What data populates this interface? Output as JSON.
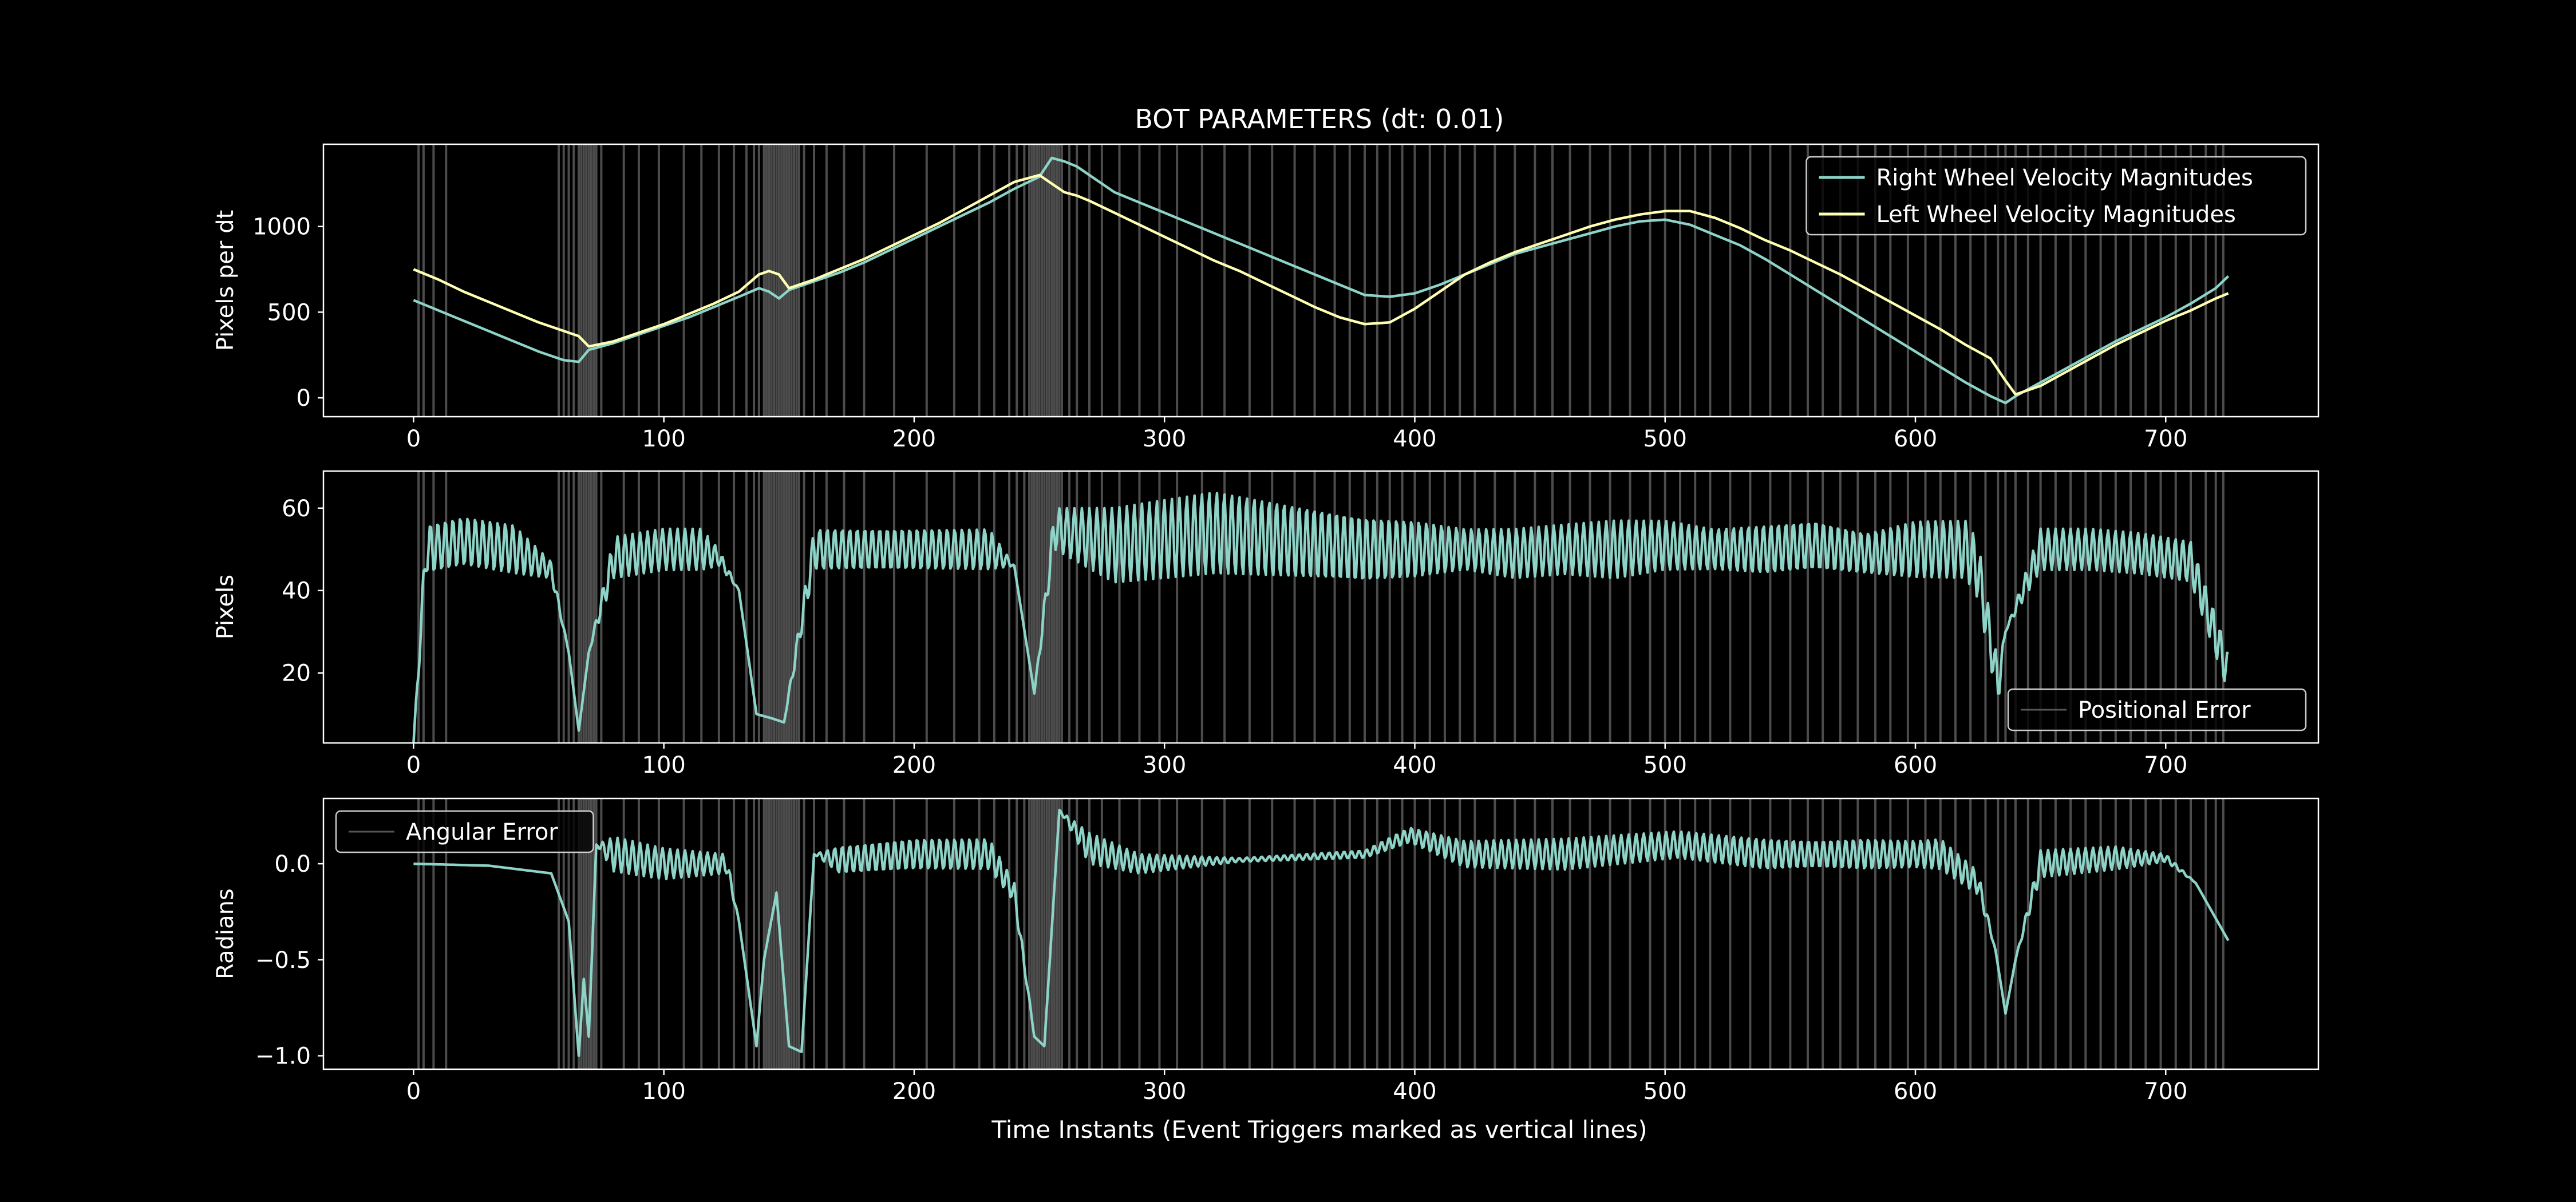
{
  "figure": {
    "title": "BOT PARAMETERS (dt: 0.01)",
    "xlabel": "Time Instants (Event Triggers marked as vertical lines)",
    "background": "#000000",
    "foreground": "#ffffff"
  },
  "chart_data": [
    {
      "type": "line",
      "title": "BOT PARAMETERS (dt: 0.01)",
      "xlabel": "",
      "ylabel": "Pixels per dt",
      "xlim": [
        -36,
        761
      ],
      "ylim": [
        -110,
        1480
      ],
      "xticks": [
        0,
        100,
        200,
        300,
        400,
        500,
        600,
        700
      ],
      "yticks": [
        0,
        500,
        1000
      ],
      "legend": "upper right",
      "series": [
        {
          "name": "Right Wheel Velocity Magnitudes",
          "color": "#8dd3c7",
          "x": [
            0,
            10,
            20,
            30,
            40,
            50,
            60,
            66,
            70,
            80,
            90,
            100,
            110,
            120,
            130,
            138,
            142,
            146,
            150,
            160,
            170,
            180,
            190,
            200,
            210,
            220,
            230,
            240,
            250,
            255,
            260,
            265,
            270,
            280,
            290,
            300,
            310,
            320,
            330,
            340,
            350,
            360,
            370,
            380,
            390,
            400,
            410,
            420,
            430,
            440,
            450,
            460,
            470,
            480,
            490,
            500,
            510,
            520,
            530,
            540,
            550,
            560,
            570,
            580,
            590,
            600,
            610,
            620,
            630,
            636,
            640,
            650,
            660,
            670,
            680,
            690,
            700,
            710,
            720,
            725
          ],
          "values": [
            570,
            510,
            450,
            390,
            330,
            270,
            220,
            210,
            280,
            320,
            370,
            420,
            470,
            530,
            590,
            640,
            620,
            580,
            630,
            680,
            730,
            790,
            860,
            930,
            1000,
            1070,
            1140,
            1220,
            1290,
            1400,
            1380,
            1350,
            1300,
            1200,
            1140,
            1080,
            1020,
            960,
            900,
            840,
            780,
            720,
            660,
            600,
            590,
            610,
            660,
            720,
            780,
            840,
            880,
            920,
            960,
            1000,
            1030,
            1040,
            1010,
            950,
            890,
            810,
            720,
            630,
            540,
            450,
            360,
            270,
            180,
            90,
            10,
            -30,
            10,
            90,
            170,
            250,
            330,
            400,
            470,
            550,
            640,
            710
          ]
        },
        {
          "name": "Left Wheel Velocity Magnitudes",
          "color": "#ffffb3",
          "x": [
            0,
            10,
            20,
            30,
            40,
            50,
            60,
            66,
            70,
            80,
            90,
            100,
            110,
            120,
            130,
            138,
            142,
            146,
            150,
            160,
            170,
            180,
            190,
            200,
            210,
            220,
            230,
            240,
            250,
            255,
            260,
            265,
            270,
            280,
            290,
            300,
            310,
            320,
            330,
            340,
            350,
            360,
            370,
            380,
            390,
            400,
            410,
            420,
            430,
            440,
            450,
            460,
            470,
            480,
            490,
            500,
            510,
            520,
            530,
            540,
            550,
            560,
            570,
            580,
            590,
            600,
            610,
            620,
            630,
            636,
            640,
            650,
            660,
            670,
            680,
            690,
            700,
            710,
            720,
            725
          ],
          "values": [
            750,
            690,
            620,
            560,
            500,
            440,
            390,
            360,
            300,
            330,
            380,
            430,
            490,
            550,
            620,
            720,
            740,
            720,
            640,
            690,
            750,
            810,
            880,
            950,
            1020,
            1100,
            1180,
            1260,
            1300,
            1250,
            1200,
            1180,
            1150,
            1080,
            1010,
            940,
            870,
            800,
            740,
            670,
            600,
            530,
            470,
            430,
            440,
            520,
            620,
            720,
            790,
            850,
            900,
            950,
            1000,
            1040,
            1070,
            1090,
            1090,
            1050,
            990,
            920,
            860,
            790,
            720,
            640,
            560,
            480,
            400,
            310,
            230,
            100,
            20,
            70,
            150,
            230,
            310,
            380,
            450,
            510,
            580,
            610
          ]
        }
      ]
    },
    {
      "type": "line",
      "xlabel": "",
      "ylabel": "Pixels",
      "xlim": [
        -36,
        761
      ],
      "ylim": [
        3,
        69
      ],
      "xticks": [
        0,
        100,
        200,
        300,
        400,
        500,
        600,
        700
      ],
      "yticks": [
        20,
        40,
        60
      ],
      "legend": "lower right",
      "series": [
        {
          "name": "Positional Error",
          "color": "#8dd3c7",
          "oscillation_amplitude": [
            0,
            6,
            6,
            6,
            2,
            0,
            0,
            0,
            5,
            5,
            5,
            2,
            0,
            0,
            0,
            0,
            5,
            5,
            5,
            5,
            0,
            0,
            5,
            9,
            10,
            9,
            8,
            7,
            5,
            6,
            6,
            7,
            6,
            5,
            6,
            6,
            5,
            7,
            7,
            7,
            5,
            0,
            5,
            5,
            5,
            5,
            5
          ],
          "x": [
            0,
            5,
            20,
            40,
            55,
            62,
            66,
            70,
            80,
            100,
            115,
            122,
            130,
            137,
            143,
            148,
            160,
            180,
            200,
            230,
            240,
            248,
            256,
            280,
            320,
            350,
            380,
            400,
            420,
            440,
            460,
            480,
            500,
            520,
            540,
            560,
            580,
            600,
            620,
            625,
            633,
            636,
            650,
            670,
            690,
            710,
            725
          ],
          "values": [
            3,
            50,
            52,
            50,
            45,
            25,
            6,
            25,
            48,
            50,
            50,
            48,
            40,
            10,
            9,
            8,
            50,
            50,
            50,
            50,
            46,
            15,
            55,
            51,
            54,
            52,
            50,
            50,
            50,
            49,
            50,
            50,
            51,
            50,
            50,
            51,
            49,
            50,
            50,
            45,
            17,
            30,
            50,
            50,
            49,
            47,
            20
          ]
        }
      ]
    },
    {
      "type": "line",
      "xlabel": "Time Instants (Event Triggers marked as vertical lines)",
      "ylabel": "Radians",
      "xlim": [
        -36,
        761
      ],
      "ylim": [
        -1.07,
        0.34
      ],
      "xticks": [
        0,
        100,
        200,
        300,
        400,
        500,
        600,
        700
      ],
      "yticks": [
        -1.0,
        -0.5,
        0.0
      ],
      "ytick_labels": [
        "−1.0",
        "−0.5",
        "0.0"
      ],
      "legend": "upper left",
      "series": [
        {
          "name": "Angular Error",
          "color": "#8dd3c7",
          "oscillation_amplitude": [
            0,
            0,
            0,
            0,
            0,
            0,
            0,
            0,
            0.09,
            0.08,
            0.05,
            0,
            0,
            0,
            0,
            0,
            0,
            0,
            0.07,
            0.08,
            0.08,
            0.05,
            0,
            0,
            0,
            0.08,
            0.05,
            0.01,
            0.02,
            0.04,
            0.07,
            0.08,
            0.07,
            0.08,
            0.07,
            0.08,
            0.07,
            0.08,
            0.06,
            0,
            0,
            0,
            0.07,
            0.06,
            0.02,
            0,
            0
          ],
          "x": [
            0,
            30,
            55,
            62,
            66,
            68,
            70,
            73,
            80,
            100,
            125,
            130,
            137,
            140,
            145,
            150,
            155,
            160,
            170,
            200,
            230,
            240,
            248,
            252,
            258,
            270,
            290,
            330,
            380,
            398,
            420,
            460,
            505,
            540,
            560,
            580,
            600,
            610,
            625,
            632,
            636,
            640,
            650,
            680,
            700,
            712,
            725
          ],
          "values": [
            0.0,
            -0.01,
            -0.05,
            -0.3,
            -1.0,
            -0.6,
            -0.9,
            0.1,
            0.05,
            0.0,
            0.0,
            -0.3,
            -0.95,
            -0.5,
            -0.15,
            -0.95,
            -0.98,
            0.05,
            0.02,
            0.05,
            0.05,
            -0.15,
            -0.9,
            -0.95,
            0.28,
            0.08,
            0.0,
            0.02,
            0.05,
            0.15,
            0.05,
            0.05,
            0.1,
            0.05,
            0.05,
            0.05,
            0.05,
            0.05,
            -0.1,
            -0.45,
            -0.78,
            -0.5,
            0.0,
            0.03,
            0.03,
            -0.1,
            -0.4
          ]
        }
      ]
    }
  ]
}
